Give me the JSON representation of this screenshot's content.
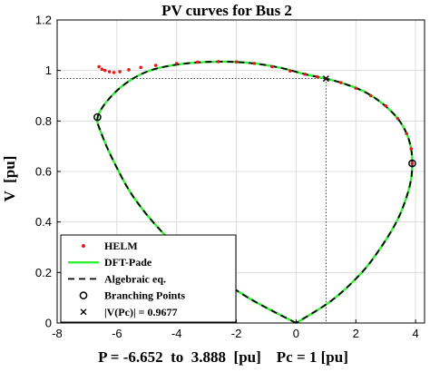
{
  "chart_data": {
    "type": "line",
    "title": "PV curves for Bus 2",
    "xlabel": "P = -6.652  to  3.888  [pu]    Pc = 1 [pu]",
    "ylabel": "V  [pu]",
    "xlim": [
      -8,
      4.3
    ],
    "ylim": [
      0,
      1.2
    ],
    "xticks": [
      "-8",
      "-6",
      "-4",
      "-2",
      "0",
      "2",
      "4"
    ],
    "yticks": [
      "0",
      "0.2",
      "0.4",
      "0.6",
      "0.8",
      "1",
      "1.2"
    ],
    "grid": true,
    "legend_position": "bottom-left",
    "series": [
      {
        "name": "HELM",
        "style": "dots",
        "color": "#e41a1c",
        "points": [
          [
            -6.6,
            1.015
          ],
          [
            -6.5,
            1.005
          ],
          [
            -6.4,
            1.0
          ],
          [
            -6.25,
            0.995
          ],
          [
            -6.1,
            0.992
          ],
          [
            -5.9,
            0.995
          ],
          [
            -5.6,
            1.003
          ],
          [
            -5.2,
            1.012
          ],
          [
            -4.7,
            1.02
          ],
          [
            -4.0,
            1.028
          ],
          [
            -3.3,
            1.033
          ],
          [
            -2.6,
            1.035
          ],
          [
            -2.0,
            1.034
          ],
          [
            -1.4,
            1.028
          ],
          [
            -0.8,
            1.015
          ],
          [
            -0.2,
            0.998
          ],
          [
            0.3,
            0.985
          ],
          [
            0.7,
            0.975
          ],
          [
            1.0,
            0.9677
          ],
          [
            1.5,
            0.952
          ],
          [
            2.0,
            0.93
          ],
          [
            2.5,
            0.9
          ],
          [
            3.0,
            0.86
          ],
          [
            3.4,
            0.81
          ],
          [
            3.7,
            0.75
          ],
          [
            3.85,
            0.69
          ],
          [
            3.888,
            0.632
          ]
        ]
      },
      {
        "name": "DFT-Pade",
        "style": "solid",
        "color": "#33ee33",
        "points": [
          [
            0,
            0
          ],
          [
            -1.6,
            0.1
          ],
          [
            -3.1,
            0.22
          ],
          [
            -4.4,
            0.35
          ],
          [
            -5.45,
            0.5
          ],
          [
            -6.15,
            0.65
          ],
          [
            -6.55,
            0.76
          ],
          [
            -6.652,
            0.81
          ],
          [
            -6.45,
            0.86
          ],
          [
            -6.0,
            0.92
          ],
          [
            -5.5,
            0.965
          ],
          [
            -5.0,
            0.995
          ],
          [
            -4.4,
            1.015
          ],
          [
            -3.5,
            1.03
          ],
          [
            -2.5,
            1.035
          ],
          [
            -1.5,
            1.029
          ],
          [
            -0.5,
            1.01
          ],
          [
            0.3,
            0.985
          ],
          [
            1.0,
            0.9677
          ],
          [
            1.6,
            0.948
          ],
          [
            2.3,
            0.915
          ],
          [
            2.9,
            0.868
          ],
          [
            3.4,
            0.81
          ],
          [
            3.7,
            0.75
          ],
          [
            3.85,
            0.69
          ],
          [
            3.888,
            0.632
          ],
          [
            3.85,
            0.57
          ],
          [
            3.7,
            0.5
          ],
          [
            3.4,
            0.41
          ],
          [
            2.9,
            0.31
          ],
          [
            2.2,
            0.2
          ],
          [
            1.2,
            0.09
          ],
          [
            0,
            0
          ]
        ]
      },
      {
        "name": "Algebraic eq.",
        "style": "dashed",
        "color": "#000000",
        "points": [
          [
            0,
            0
          ],
          [
            -1.6,
            0.1
          ],
          [
            -3.1,
            0.22
          ],
          [
            -4.4,
            0.35
          ],
          [
            -5.45,
            0.5
          ],
          [
            -6.15,
            0.65
          ],
          [
            -6.55,
            0.76
          ],
          [
            -6.652,
            0.81
          ],
          [
            -6.45,
            0.86
          ],
          [
            -6.0,
            0.92
          ],
          [
            -5.5,
            0.965
          ],
          [
            -5.0,
            0.995
          ],
          [
            -4.4,
            1.015
          ],
          [
            -3.5,
            1.03
          ],
          [
            -2.5,
            1.035
          ],
          [
            -1.5,
            1.029
          ],
          [
            -0.5,
            1.01
          ],
          [
            0.3,
            0.985
          ],
          [
            1.0,
            0.9677
          ],
          [
            1.6,
            0.948
          ],
          [
            2.3,
            0.915
          ],
          [
            2.9,
            0.868
          ],
          [
            3.4,
            0.81
          ],
          [
            3.7,
            0.75
          ],
          [
            3.85,
            0.69
          ],
          [
            3.888,
            0.632
          ],
          [
            3.85,
            0.57
          ],
          [
            3.7,
            0.5
          ],
          [
            3.4,
            0.41
          ],
          [
            2.9,
            0.31
          ],
          [
            2.2,
            0.2
          ],
          [
            1.2,
            0.09
          ],
          [
            0,
            0
          ]
        ]
      },
      {
        "name": "Branching Points",
        "style": "circle",
        "color": "#000000",
        "points": [
          [
            -6.652,
            0.815
          ],
          [
            3.888,
            0.632
          ]
        ]
      },
      {
        "name": "|V(Pc)| = 0.9677",
        "style": "cross",
        "color": "#000000",
        "points": [
          [
            1.0,
            0.9677
          ]
        ]
      }
    ],
    "reference_lines": {
      "x": 1.0,
      "y": 0.9677
    }
  }
}
